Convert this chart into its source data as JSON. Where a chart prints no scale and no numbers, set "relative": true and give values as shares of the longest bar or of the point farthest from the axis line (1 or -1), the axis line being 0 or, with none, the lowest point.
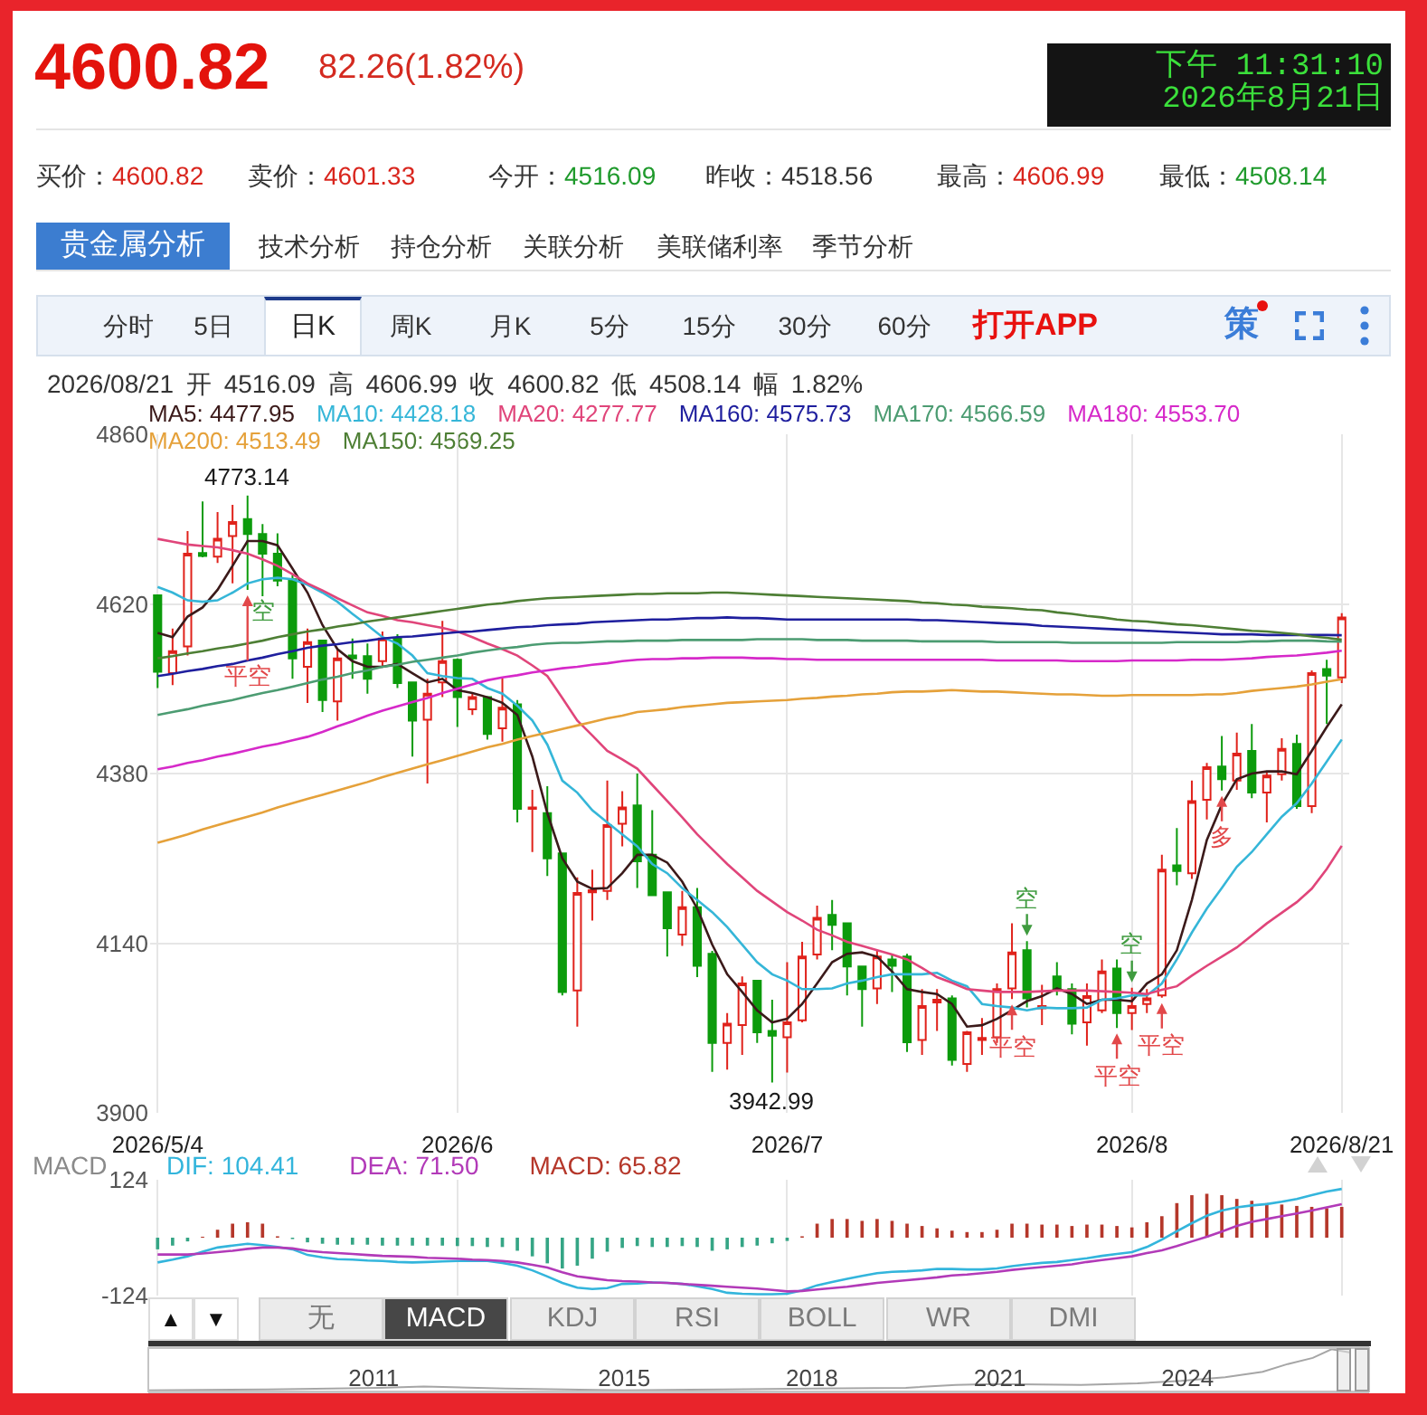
{
  "chart_data": [
    {
      "type": "other",
      "title": "4600.82",
      "subtitle": "82.26(1.82%)",
      "annotations": [
        "下午 11:31:10",
        "2026年8月21日",
        "买价：4600.82",
        "卖价：4601.33",
        "今开：4516.09",
        "昨收：4518.56",
        "最高：4606.99",
        "最低：4508.14",
        "贵金属分析",
        "技术分析",
        "持仓分析",
        "关联分析",
        "美联储利率",
        "季节分析",
        "分时",
        "5日",
        "日K",
        "周K",
        "月K",
        "5分",
        "15分",
        "30分",
        "60分",
        "打开APP",
        "策"
      ]
    },
    {
      "type": "candlestick",
      "title": "2026/08/21 开 4516.09 高 4606.99 收 4600.82 低 4508.14 幅 1.82%",
      "categories": [
        "2026/5/4",
        null,
        null,
        null,
        null,
        null,
        null,
        null,
        null,
        null,
        null,
        null,
        null,
        null,
        null,
        null,
        null,
        null,
        null,
        null,
        "2026/6",
        null,
        null,
        null,
        null,
        null,
        null,
        null,
        null,
        null,
        null,
        null,
        null,
        null,
        null,
        null,
        null,
        null,
        null,
        null,
        null,
        null,
        "2026/7",
        null,
        null,
        null,
        null,
        null,
        null,
        null,
        null,
        null,
        null,
        null,
        null,
        null,
        null,
        null,
        null,
        null,
        null,
        null,
        null,
        null,
        null,
        "2026/8",
        null,
        null,
        null,
        null,
        null,
        null,
        null,
        null,
        null,
        null,
        null,
        null,
        null,
        "2026/8/21"
      ],
      "ohlc": [
        [
          4632,
          4632,
          4501,
          4524
        ],
        [
          4522,
          4585,
          4505,
          4553
        ],
        [
          4560,
          4723,
          4547,
          4691
        ],
        [
          4692,
          4765,
          4686,
          4688
        ],
        [
          4687,
          4750,
          4678,
          4712
        ],
        [
          4716,
          4760,
          4649,
          4736
        ],
        [
          4740,
          4773.14,
          4640,
          4719
        ],
        [
          4719,
          4733,
          4631,
          4691
        ],
        [
          4691,
          4720,
          4645,
          4653
        ],
        [
          4655,
          4661,
          4514,
          4543
        ],
        [
          4531,
          4585,
          4480,
          4566
        ],
        [
          4568,
          4568,
          4467,
          4484
        ],
        [
          4482,
          4556,
          4455,
          4543
        ],
        [
          4547,
          4571,
          4514,
          4543
        ],
        [
          4546,
          4564,
          4493,
          4514
        ],
        [
          4539,
          4581,
          4530,
          4571
        ],
        [
          4571,
          4577,
          4501,
          4508
        ],
        [
          4509,
          4509,
          4404,
          4455
        ],
        [
          4456,
          4514,
          4366,
          4493
        ],
        [
          4509,
          4596,
          4488,
          4539
        ],
        [
          4541,
          4543,
          4446,
          4488
        ],
        [
          4471,
          4493,
          4463,
          4488
        ],
        [
          4488,
          4488,
          4428,
          4436
        ],
        [
          4444,
          4515,
          4425,
          4473
        ],
        [
          4478,
          4484,
          4311,
          4330
        ],
        [
          4330,
          4357,
          4269,
          4332
        ],
        [
          4324,
          4362,
          4235,
          4260
        ],
        [
          4267,
          4267,
          4066,
          4071
        ],
        [
          4073,
          4233,
          4022,
          4211
        ],
        [
          4212,
          4244,
          4172,
          4215
        ],
        [
          4214,
          4370,
          4201,
          4307
        ],
        [
          4309,
          4355,
          4277,
          4332
        ],
        [
          4335,
          4380,
          4218,
          4256
        ],
        [
          4265,
          4328,
          4207,
          4208
        ],
        [
          4212,
          4212,
          4121,
          4161
        ],
        [
          4152,
          4214,
          4136,
          4191
        ],
        [
          4191,
          4218,
          4092,
          4108
        ],
        [
          4125,
          4129,
          3958,
          3999
        ],
        [
          3999,
          4041,
          3961,
          4026
        ],
        [
          4024,
          4093,
          3982,
          4083
        ],
        [
          4087,
          4087,
          3999,
          4014
        ],
        [
          4016,
          4060,
          3942.99,
          4009
        ],
        [
          4007,
          4113,
          3957,
          4028
        ],
        [
          4031,
          4142,
          4028,
          4121
        ],
        [
          4124,
          4193,
          4117,
          4176
        ],
        [
          4180,
          4201,
          4130,
          4166
        ],
        [
          4168,
          4168,
          4066,
          4107
        ],
        [
          4107,
          4107,
          4022,
          4075
        ],
        [
          4076,
          4130,
          4054,
          4121
        ],
        [
          4117,
          4125,
          4071,
          4108
        ],
        [
          4121,
          4125,
          3986,
          4000
        ],
        [
          4003,
          4075,
          3982,
          4051
        ],
        [
          4056,
          4075,
          4016,
          4060
        ],
        [
          4062,
          4066,
          3967,
          3975
        ],
        [
          3969,
          4016,
          3958,
          4014
        ],
        [
          4003,
          4034,
          3982,
          4006
        ],
        [
          4007,
          4083,
          3999,
          4075
        ],
        [
          4076,
          4168,
          4061,
          4127
        ],
        [
          4130,
          4143,
          4049,
          4062
        ],
        [
          4048,
          4081,
          4024,
          4051
        ],
        [
          4093,
          4113,
          4066,
          4073
        ],
        [
          4075,
          4083,
          4011,
          4026
        ],
        [
          4028,
          4083,
          3995,
          4065
        ],
        [
          4045,
          4117,
          4041,
          4100
        ],
        [
          4104,
          4117,
          4020,
          4041
        ],
        [
          4041,
          4077,
          4017,
          4051
        ],
        [
          4054,
          4075,
          4041,
          4062
        ],
        [
          4066,
          4265,
          4063,
          4244
        ],
        [
          4250,
          4303,
          4222,
          4242
        ],
        [
          4239,
          4370,
          4231,
          4341
        ],
        [
          4343,
          4395,
          4315,
          4389
        ],
        [
          4390,
          4433,
          4356,
          4372
        ],
        [
          4370,
          4438,
          4357,
          4408
        ],
        [
          4412,
          4450,
          4345,
          4353
        ],
        [
          4353,
          4383,
          4311,
          4377
        ],
        [
          4379,
          4430,
          4370,
          4415
        ],
        [
          4422,
          4435,
          4330,
          4334
        ],
        [
          4334,
          4526,
          4324,
          4522
        ],
        [
          4528,
          4541,
          4450,
          4518.56
        ],
        [
          4516.09,
          4606.99,
          4508.14,
          4600.82
        ]
      ],
      "colors": [
        "#0c9b0c",
        "#e0221b",
        "#e0221b",
        "#0c9b0c",
        "#e0221b",
        "#e0221b",
        "#0c9b0c",
        "#0c9b0c",
        "#0c9b0c",
        "#0c9b0c",
        "#e0221b",
        "#0c9b0c",
        "#e0221b",
        "#0c9b0c",
        "#0c9b0c",
        "#e0221b",
        "#0c9b0c",
        "#0c9b0c",
        "#e0221b",
        "#e0221b",
        "#0c9b0c",
        "#e0221b",
        "#0c9b0c",
        "#e0221b",
        "#0c9b0c",
        "#e0221b",
        "#0c9b0c",
        "#0c9b0c",
        "#e0221b",
        "#e0221b",
        "#e0221b",
        "#e0221b",
        "#0c9b0c",
        "#0c9b0c",
        "#0c9b0c",
        "#e0221b",
        "#0c9b0c",
        "#0c9b0c",
        "#e0221b",
        "#e0221b",
        "#0c9b0c",
        "#0c9b0c",
        "#e0221b",
        "#e0221b",
        "#e0221b",
        "#0c9b0c",
        "#0c9b0c",
        "#0c9b0c",
        "#e0221b",
        "#0c9b0c",
        "#0c9b0c",
        "#e0221b",
        "#e0221b",
        "#0c9b0c",
        "#e0221b",
        "#e0221b",
        "#e0221b",
        "#e0221b",
        "#0c9b0c",
        "#e0221b",
        "#0c9b0c",
        "#0c9b0c",
        "#e0221b",
        "#e0221b",
        "#0c9b0c",
        "#e0221b",
        "#e0221b",
        "#e0221b",
        "#0c9b0c",
        "#e0221b",
        "#e0221b",
        "#0c9b0c",
        "#e0221b",
        "#0c9b0c",
        "#e0221b",
        "#e0221b",
        "#0c9b0c",
        "#e0221b",
        "#0c9b0c",
        "#e0221b"
      ],
      "series": [
        {
          "name": "MA5: 4477.95",
          "type": "line",
          "color": "#3b1a1a",
          "values": [
            4579,
            4573,
            4602,
            4615,
            4640,
            4674,
            4709,
            4709,
            4703,
            4670,
            4636,
            4590,
            4556,
            4539,
            4531,
            4531,
            4535,
            4522,
            4509,
            4514,
            4498,
            4494,
            4488,
            4480,
            4463,
            4404,
            4324,
            4260,
            4227,
            4217,
            4218,
            4239,
            4265,
            4265,
            4254,
            4227,
            4189,
            4138,
            4096,
            4071,
            4045,
            4028,
            4033,
            4054,
            4083,
            4113,
            4125,
            4127,
            4121,
            4100,
            4075,
            4071,
            4068,
            4054,
            4022,
            4024,
            4033,
            4045,
            4058,
            4065,
            4076,
            4068,
            4054,
            4060,
            4060,
            4058,
            4083,
            4096,
            4130,
            4201,
            4286,
            4336,
            4372,
            4380,
            4383,
            4383,
            4379,
            4412,
            4446,
            4477.95
          ]
        },
        {
          "name": "MA10: 4428.18",
          "type": "line",
          "color": "#35b6d8",
          "values": [
            4644,
            4636,
            4625,
            4623,
            4625,
            4636,
            4649,
            4655,
            4657,
            4655,
            4647,
            4636,
            4623,
            4606,
            4590,
            4573,
            4564,
            4547,
            4522,
            4518,
            4515,
            4514,
            4501,
            4493,
            4476,
            4455,
            4421,
            4370,
            4353,
            4328,
            4311,
            4294,
            4277,
            4252,
            4239,
            4218,
            4201,
            4184,
            4163,
            4138,
            4113,
            4096,
            4087,
            4075,
            4075,
            4076,
            4083,
            4087,
            4092,
            4096,
            4096,
            4096,
            4098,
            4087,
            4079,
            4054,
            4051,
            4049,
            4045,
            4049,
            4048,
            4048,
            4049,
            4060,
            4062,
            4066,
            4066,
            4083,
            4117,
            4155,
            4189,
            4218,
            4248,
            4269,
            4294,
            4319,
            4338,
            4366,
            4397,
            4428.18
          ]
        },
        {
          "name": "MA20: 4277.77",
          "type": "line",
          "color": "#e0457a",
          "values": [
            4712,
            4708,
            4704,
            4702,
            4700,
            4696,
            4691,
            4683,
            4674,
            4662,
            4649,
            4639,
            4628,
            4618,
            4608,
            4603,
            4597,
            4594,
            4590,
            4586,
            4581,
            4573,
            4564,
            4556,
            4547,
            4533,
            4518,
            4487,
            4455,
            4434,
            4412,
            4400,
            4387,
            4364,
            4341,
            4318,
            4294,
            4273,
            4252,
            4233,
            4214,
            4199,
            4184,
            4172,
            4159,
            4151,
            4142,
            4136,
            4130,
            4124,
            4117,
            4105,
            4092,
            4084,
            4075,
            4073,
            4071,
            4071,
            4071,
            4072,
            4073,
            4073,
            4073,
            4072,
            4071,
            4070,
            4068,
            4074,
            4079,
            4094,
            4108,
            4121,
            4134,
            4151,
            4168,
            4183,
            4198,
            4217,
            4245,
            4277.77
          ]
        },
        {
          "name": "MA160: 4575.73",
          "type": "line",
          "color": "#1f1f9e",
          "values": [
            4518,
            4521,
            4525,
            4528,
            4532,
            4535,
            4540,
            4544,
            4549,
            4553,
            4558,
            4561,
            4563,
            4566,
            4568,
            4571,
            4573,
            4574,
            4576,
            4578,
            4580,
            4581,
            4583,
            4585,
            4587,
            4588,
            4590,
            4591,
            4592,
            4594,
            4595,
            4596,
            4597,
            4598,
            4598,
            4599,
            4600,
            4600,
            4601,
            4600,
            4600,
            4599,
            4598,
            4598,
            4598,
            4598,
            4598,
            4598,
            4598,
            4598,
            4598,
            4597,
            4597,
            4596,
            4595,
            4594,
            4593,
            4592,
            4591,
            4589,
            4588,
            4587,
            4586,
            4585,
            4584,
            4583,
            4582,
            4581,
            4580,
            4579,
            4578,
            4577,
            4577,
            4577,
            4576,
            4576,
            4576,
            4576,
            4576,
            4575.73
          ]
        },
        {
          "name": "MA170: 4566.59",
          "type": "line",
          "color": "#4c9c72",
          "values": [
            4463,
            4467,
            4471,
            4476,
            4480,
            4484,
            4489,
            4494,
            4498,
            4503,
            4508,
            4513,
            4517,
            4522,
            4526,
            4531,
            4534,
            4538,
            4541,
            4544,
            4547,
            4551,
            4554,
            4557,
            4559,
            4562,
            4564,
            4565,
            4565,
            4566,
            4567,
            4567,
            4568,
            4568,
            4568,
            4569,
            4569,
            4569,
            4569,
            4569,
            4570,
            4570,
            4570,
            4570,
            4569,
            4569,
            4569,
            4568,
            4568,
            4568,
            4568,
            4567,
            4567,
            4567,
            4567,
            4567,
            4566,
            4566,
            4566,
            4566,
            4566,
            4565,
            4565,
            4565,
            4565,
            4565,
            4565,
            4565,
            4566,
            4566,
            4566,
            4566,
            4566,
            4567,
            4567,
            4568,
            4568,
            4568,
            4567,
            4566.59
          ]
        },
        {
          "name": "MA180: 4553.70",
          "type": "line",
          "color": "#d629c9",
          "values": [
            4386,
            4390,
            4395,
            4399,
            4404,
            4408,
            4413,
            4418,
            4422,
            4427,
            4432,
            4439,
            4447,
            4454,
            4462,
            4469,
            4475,
            4481,
            4487,
            4494,
            4500,
            4506,
            4512,
            4516,
            4519,
            4523,
            4526,
            4529,
            4531,
            4534,
            4536,
            4539,
            4541,
            4542,
            4542,
            4543,
            4543,
            4544,
            4544,
            4544,
            4543,
            4543,
            4542,
            4542,
            4541,
            4541,
            4541,
            4541,
            4541,
            4541,
            4541,
            4541,
            4541,
            4541,
            4541,
            4541,
            4540,
            4540,
            4540,
            4540,
            4540,
            4539,
            4539,
            4539,
            4539,
            4540,
            4540,
            4540,
            4540,
            4541,
            4541,
            4541,
            4542,
            4543,
            4545,
            4546,
            4547,
            4549,
            4551,
            4553.7
          ]
        },
        {
          "name": "MA200: 4513.49",
          "type": "line",
          "color": "#e5a13a",
          "values": [
            4282,
            4288,
            4294,
            4301,
            4307,
            4313,
            4319,
            4325,
            4332,
            4338,
            4344,
            4350,
            4356,
            4362,
            4368,
            4375,
            4381,
            4387,
            4393,
            4399,
            4405,
            4411,
            4417,
            4422,
            4428,
            4433,
            4438,
            4443,
            4448,
            4453,
            4458,
            4462,
            4467,
            4469,
            4471,
            4474,
            4476,
            4478,
            4480,
            4481,
            4482,
            4483,
            4484,
            4486,
            4487,
            4489,
            4490,
            4492,
            4493,
            4495,
            4496,
            4496,
            4497,
            4498,
            4497,
            4496,
            4496,
            4495,
            4494,
            4493,
            4492,
            4492,
            4491,
            4490,
            4490,
            4491,
            4491,
            4491,
            4491,
            4491,
            4492,
            4492,
            4494,
            4497,
            4499,
            4501,
            4503,
            4506,
            4510,
            4513.49
          ]
        },
        {
          "name": "MA150: 4569.25",
          "type": "line",
          "color": "#4e7f35",
          "values": [
            4543,
            4546,
            4550,
            4553,
            4557,
            4560,
            4564,
            4568,
            4573,
            4577,
            4581,
            4584,
            4588,
            4591,
            4595,
            4598,
            4601,
            4604,
            4607,
            4610,
            4613,
            4616,
            4619,
            4621,
            4624,
            4626,
            4628,
            4629,
            4630,
            4631,
            4632,
            4633,
            4634,
            4634,
            4635,
            4635,
            4635,
            4636,
            4636,
            4635,
            4634,
            4633,
            4632,
            4631,
            4630,
            4629,
            4628,
            4627,
            4626,
            4625,
            4624,
            4622,
            4621,
            4619,
            4618,
            4616,
            4615,
            4614,
            4612,
            4611,
            4608,
            4606,
            4603,
            4601,
            4598,
            4596,
            4595,
            4593,
            4591,
            4590,
            4588,
            4586,
            4584,
            4582,
            4581,
            4579,
            4577,
            4574,
            4572,
            4569.25
          ]
        }
      ],
      "annotations": [
        {
          "text": "4773.14",
          "y": 4773.14
        },
        {
          "text": "3942.99",
          "y": 3942.99
        },
        {
          "text": "平空",
          "y": 4640
        },
        {
          "text": "空",
          "y": 4631
        },
        {
          "text": "平空",
          "y": 4061
        },
        {
          "text": "空",
          "y": 4143
        },
        {
          "text": "平空",
          "y": 4020
        },
        {
          "text": "空",
          "y": 4077
        },
        {
          "text": "平空",
          "y": 4063
        },
        {
          "text": "多",
          "y": 4356
        }
      ],
      "ylim": [
        3900,
        4860
      ],
      "yticks": [
        3900,
        4140,
        4380,
        4620,
        4860
      ],
      "grid": true,
      "legend": "top left"
    },
    {
      "type": "bar",
      "title": "MACD",
      "categories": [
        "2026/5/4",
        null,
        null,
        null,
        null,
        null,
        null,
        null,
        null,
        null,
        null,
        null,
        null,
        null,
        null,
        null,
        null,
        null,
        null,
        null,
        "2026/6",
        null,
        null,
        null,
        null,
        null,
        null,
        null,
        null,
        null,
        null,
        null,
        null,
        null,
        null,
        null,
        null,
        null,
        null,
        null,
        null,
        null,
        "2026/7",
        null,
        null,
        null,
        null,
        null,
        null,
        null,
        null,
        null,
        null,
        null,
        null,
        null,
        null,
        null,
        null,
        null,
        null,
        null,
        null,
        null,
        null,
        "2026/8",
        null,
        null,
        null,
        null,
        null,
        null,
        null,
        null,
        null,
        null,
        null,
        null,
        null,
        "2026/8/21"
      ],
      "series": [
        {
          "name": "DIF: 104.41",
          "type": "line",
          "color": "#33b5dc",
          "values": [
            -53,
            -47,
            -40,
            -30,
            -21,
            -17,
            -13,
            -16,
            -20,
            -25,
            -37,
            -42,
            -46,
            -47,
            -49,
            -50,
            -52,
            -53,
            -52,
            -51,
            -50,
            -50,
            -50,
            -54,
            -60,
            -70,
            -83,
            -97,
            -107,
            -110,
            -108,
            -99,
            -98,
            -96,
            -97,
            -99,
            -104,
            -110,
            -118,
            -120,
            -121,
            -121,
            -120,
            -113,
            -102,
            -95,
            -88,
            -82,
            -76,
            -73,
            -72,
            -70,
            -67,
            -67,
            -68,
            -68,
            -66,
            -61,
            -57,
            -54,
            -52,
            -48,
            -44,
            -39,
            -35,
            -31,
            -20,
            -4,
            14,
            31,
            47,
            58,
            65,
            69,
            72,
            77,
            83,
            91,
            99,
            104.41
          ]
        },
        {
          "name": "DEA: 71.50",
          "type": "line",
          "color": "#b23ab8",
          "values": [
            -36,
            -36,
            -36,
            -34,
            -31,
            -28,
            -24,
            -21,
            -21,
            -23,
            -28,
            -31,
            -33,
            -35,
            -37,
            -39,
            -40,
            -41,
            -43,
            -44,
            -45,
            -47,
            -48,
            -50,
            -53,
            -58,
            -64,
            -74,
            -83,
            -87,
            -91,
            -93,
            -94,
            -96,
            -97,
            -99,
            -101,
            -103,
            -105,
            -107,
            -109,
            -112,
            -115,
            -114,
            -111,
            -108,
            -105,
            -101,
            -97,
            -94,
            -91,
            -88,
            -85,
            -81,
            -79,
            -76,
            -73,
            -69,
            -66,
            -63,
            -60,
            -57,
            -52,
            -48,
            -44,
            -40,
            -33,
            -27,
            -18,
            -8,
            2,
            13,
            25,
            34,
            40,
            46,
            52,
            58,
            65,
            71.5
          ]
        },
        {
          "name": "MACD: 65.82",
          "type": "bar",
          "color": "#b5372a",
          "colors": [
            "#35a585",
            "#35a585",
            "#35a585",
            "#b5372a",
            "#b5372a",
            "#b5372a",
            "#b5372a",
            "#b5372a",
            "#b5372a",
            "#35a585",
            "#35a585",
            "#35a585",
            "#35a585",
            "#35a585",
            "#35a585",
            "#35a585",
            "#35a585",
            "#35a585",
            "#35a585",
            "#35a585",
            "#35a585",
            "#35a585",
            "#35a585",
            "#35a585",
            "#35a585",
            "#35a585",
            "#35a585",
            "#35a585",
            "#35a585",
            "#35a585",
            "#35a585",
            "#35a585",
            "#35a585",
            "#35a585",
            "#35a585",
            "#35a585",
            "#35a585",
            "#35a585",
            "#35a585",
            "#35a585",
            "#35a585",
            "#35a585",
            "#35a585",
            "#b5372a",
            "#b5372a",
            "#b5372a",
            "#b5372a",
            "#b5372a",
            "#b5372a",
            "#b5372a",
            "#b5372a",
            "#b5372a",
            "#b5372a",
            "#b5372a",
            "#b5372a",
            "#b5372a",
            "#b5372a",
            "#b5372a",
            "#b5372a",
            "#b5372a",
            "#b5372a",
            "#b5372a",
            "#b5372a",
            "#b5372a",
            "#b5372a",
            "#b5372a",
            "#b5372a",
            "#b5372a",
            "#b5372a",
            "#b5372a",
            "#b5372a",
            "#b5372a",
            "#b5372a",
            "#b5372a",
            "#b5372a",
            "#b5372a",
            "#b5372a",
            "#b5372a",
            "#b5372a",
            "#b5372a"
          ],
          "values": [
            -25,
            -17,
            -8,
            2,
            17,
            30,
            33,
            30,
            3,
            -3,
            -10,
            -13,
            -15,
            -15,
            -15,
            -17,
            -17,
            -17,
            -17,
            -17,
            -18,
            -18,
            -20,
            -20,
            -28,
            -40,
            -55,
            -66,
            -60,
            -45,
            -30,
            -22,
            -18,
            -20,
            -20,
            -18,
            -20,
            -28,
            -25,
            -20,
            -17,
            -12,
            -7,
            3,
            30,
            40,
            40,
            36,
            40,
            36,
            30,
            25,
            20,
            15,
            12,
            12,
            17,
            30,
            30,
            28,
            28,
            25,
            28,
            28,
            25,
            22,
            33,
            46,
            74,
            91,
            94,
            91,
            83,
            79,
            74,
            71,
            68,
            66,
            63,
            65.82
          ]
        }
      ],
      "ylim": [
        -124,
        124
      ],
      "yticks": [
        -124,
        124
      ],
      "grid": true,
      "legend": "top left",
      "tick_labels": "y"
    },
    {
      "type": "other",
      "annotations": [
        "▲",
        "▼",
        "无",
        "MACD",
        "KDJ",
        "RSI",
        "BOLL",
        "WR",
        "DMI"
      ]
    },
    {
      "type": "line",
      "relative": true,
      "color": "#a6a6a6",
      "x": [
        2007.4,
        2009.3,
        2011.1,
        2011.8,
        2013.1,
        2015,
        2016.6,
        2018,
        2019.5,
        2020.3,
        2020.9,
        2022.3,
        2023.2,
        2023.9,
        2024.6,
        2025.2,
        2025.6,
        2026,
        2026.3,
        2026.6
      ],
      "values": [
        0,
        0.02,
        0.06,
        0.09,
        0.04,
        0,
        0.02,
        0.04,
        0.06,
        0.13,
        0.15,
        0.13,
        0.17,
        0.23,
        0.32,
        0.45,
        0.64,
        0.79,
        1,
        0.92
      ],
      "xlim": [
        2007.4,
        2026.9
      ],
      "xticks": [
        2011,
        2015,
        2018,
        2021,
        2024
      ]
    }
  ]
}
